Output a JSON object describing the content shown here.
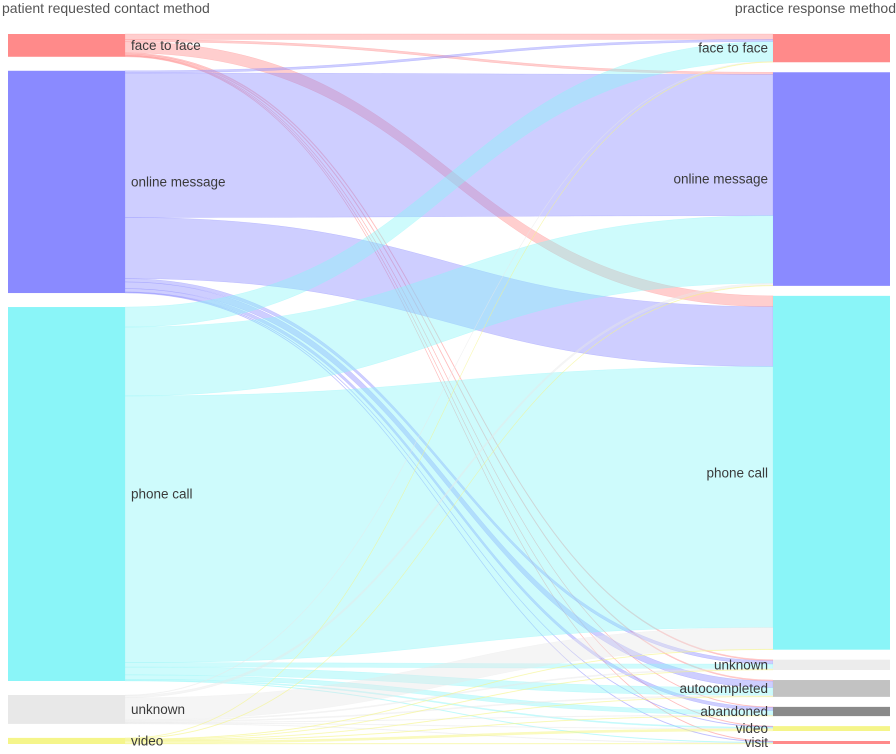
{
  "header": {
    "left_title": "patient requested contact method",
    "right_title": "practice response method"
  },
  "chart_data": {
    "type": "sankey",
    "source_nodes": [
      {
        "name": "face to face",
        "color": "#ff8a8a"
      },
      {
        "name": "online message",
        "color": "#8a8aff"
      },
      {
        "name": "phone call",
        "color": "#8af5f8"
      },
      {
        "name": "unknown",
        "color": "#e8e8e8"
      },
      {
        "name": "video",
        "color": "#f5f58a"
      }
    ],
    "target_nodes": [
      {
        "name": "face to face",
        "color": "#ff8a8a"
      },
      {
        "name": "online message",
        "color": "#8a8aff"
      },
      {
        "name": "phone call",
        "color": "#8af5f8"
      },
      {
        "name": "unknown",
        "color": "#ececec"
      },
      {
        "name": "autocompleted",
        "color": "#c2c2c2"
      },
      {
        "name": "abandoned",
        "color": "#8a8a8a"
      },
      {
        "name": "video",
        "color": "#f5f58a"
      },
      {
        "name": "visit",
        "color": "#ff8a8a"
      }
    ],
    "links": [
      {
        "source": "face to face",
        "target": "face to face",
        "value": 5
      },
      {
        "source": "face to face",
        "target": "online message",
        "value": 2
      },
      {
        "source": "face to face",
        "target": "phone call",
        "value": 10
      },
      {
        "source": "face to face",
        "target": "unknown",
        "value": 1
      },
      {
        "source": "face to face",
        "target": "autocompleted",
        "value": 1
      },
      {
        "source": "face to face",
        "target": "abandoned",
        "value": 0.5
      },
      {
        "source": "face to face",
        "target": "video",
        "value": 0.5
      },
      {
        "source": "face to face",
        "target": "visit",
        "value": 0.5
      },
      {
        "source": "online message",
        "target": "face to face",
        "value": 2
      },
      {
        "source": "online message",
        "target": "online message",
        "value": 130
      },
      {
        "source": "online message",
        "target": "phone call",
        "value": 55
      },
      {
        "source": "online message",
        "target": "unknown",
        "value": 3
      },
      {
        "source": "online message",
        "target": "autocompleted",
        "value": 6
      },
      {
        "source": "online message",
        "target": "abandoned",
        "value": 3
      },
      {
        "source": "online message",
        "target": "video",
        "value": 0.5
      },
      {
        "source": "online message",
        "target": "visit",
        "value": 0.5
      },
      {
        "source": "phone call",
        "target": "face to face",
        "value": 18
      },
      {
        "source": "phone call",
        "target": "online message",
        "value": 62
      },
      {
        "source": "phone call",
        "target": "phone call",
        "value": 240
      },
      {
        "source": "phone call",
        "target": "unknown",
        "value": 4
      },
      {
        "source": "phone call",
        "target": "autocompleted",
        "value": 7
      },
      {
        "source": "phone call",
        "target": "abandoned",
        "value": 4
      },
      {
        "source": "phone call",
        "target": "video",
        "value": 1
      },
      {
        "source": "phone call",
        "target": "visit",
        "value": 0.5
      },
      {
        "source": "unknown",
        "target": "face to face",
        "value": 0.5
      },
      {
        "source": "unknown",
        "target": "online message",
        "value": 2
      },
      {
        "source": "unknown",
        "target": "phone call",
        "value": 20
      },
      {
        "source": "unknown",
        "target": "unknown",
        "value": 1
      },
      {
        "source": "unknown",
        "target": "autocompleted",
        "value": 1
      },
      {
        "source": "unknown",
        "target": "abandoned",
        "value": 0.5
      },
      {
        "source": "unknown",
        "target": "video",
        "value": 0.5
      },
      {
        "source": "unknown",
        "target": "visit",
        "value": 0.5
      },
      {
        "source": "video",
        "target": "face to face",
        "value": 0.5
      },
      {
        "source": "video",
        "target": "online message",
        "value": 0.5
      },
      {
        "source": "video",
        "target": "phone call",
        "value": 0.5
      },
      {
        "source": "video",
        "target": "unknown",
        "value": 0.5
      },
      {
        "source": "video",
        "target": "autocompleted",
        "value": 0.5
      },
      {
        "source": "video",
        "target": "abandoned",
        "value": 0.5
      },
      {
        "source": "video",
        "target": "video",
        "value": 2
      },
      {
        "source": "video",
        "target": "visit",
        "value": 0.5
      }
    ]
  }
}
